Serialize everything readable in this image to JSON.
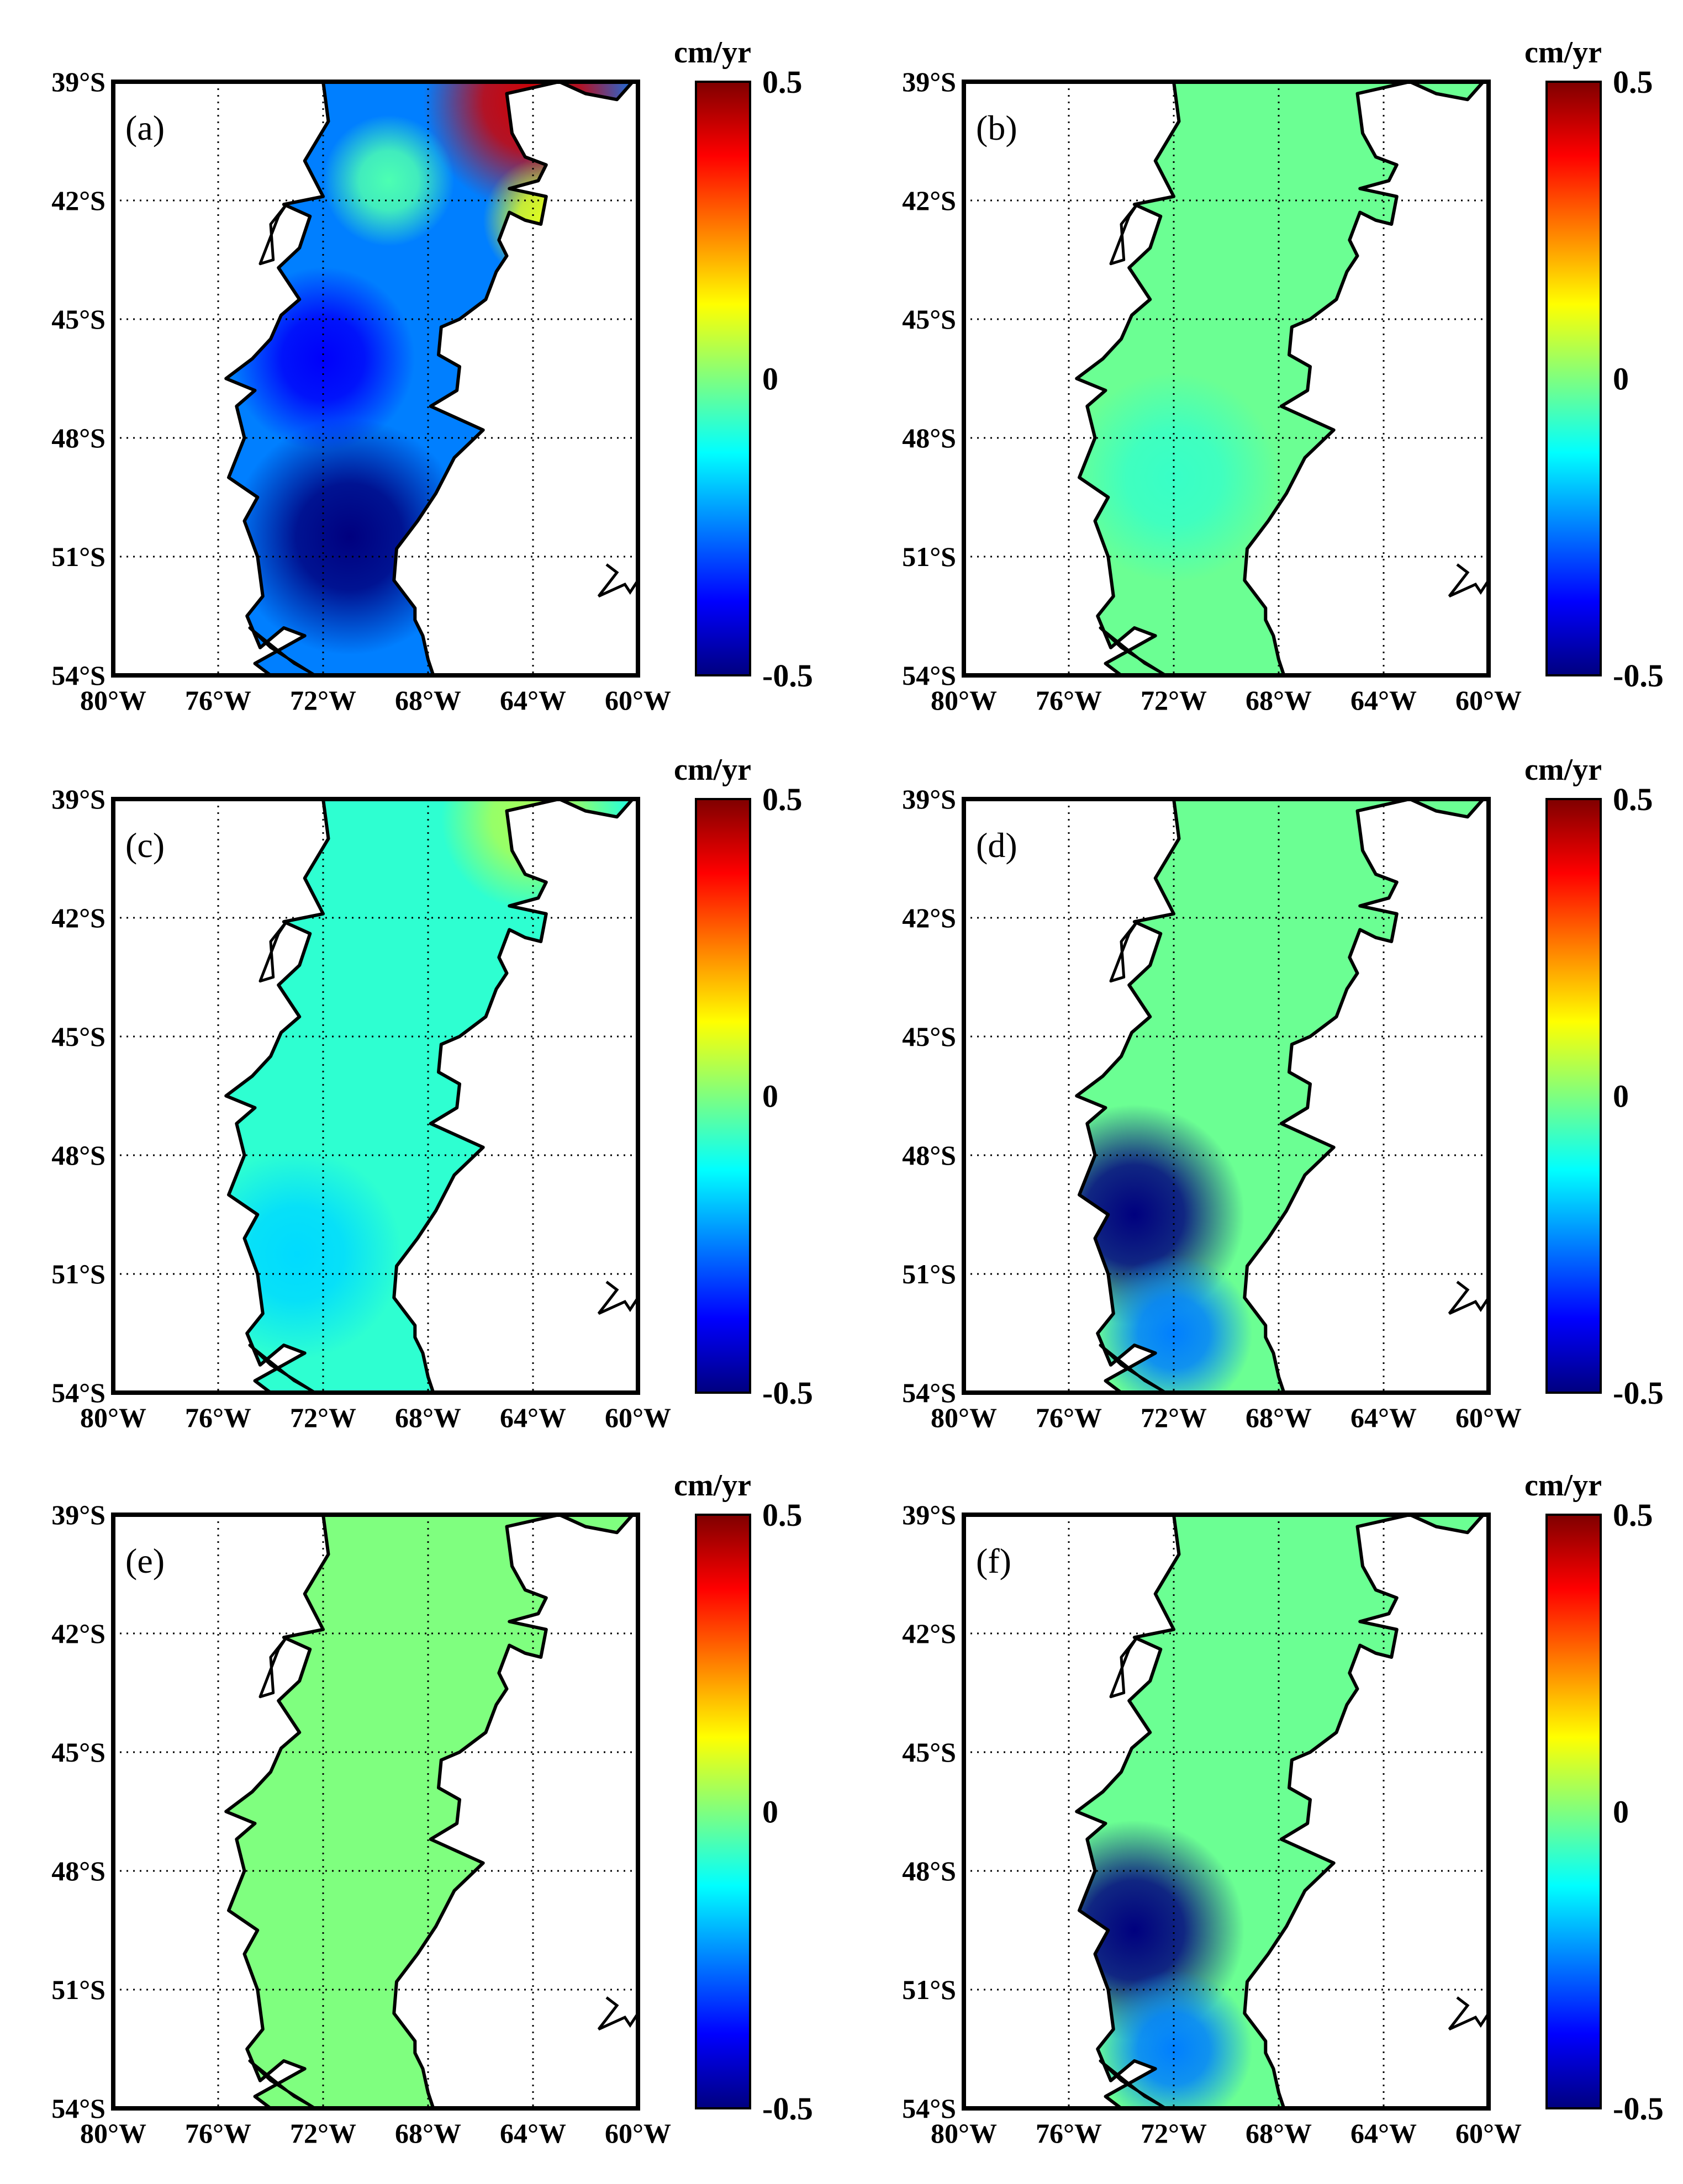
{
  "figure": {
    "unit_label": "cm/yr",
    "colormap": "jet",
    "colorbar_ticks": [
      "0.5",
      "0",
      "-0.5"
    ],
    "colorbar_range": [
      -0.5,
      0.5
    ],
    "lat_ticks": [
      "39°S",
      "42°S",
      "45°S",
      "48°S",
      "51°S",
      "54°S"
    ],
    "lon_ticks": [
      "80°W",
      "76°W",
      "72°W",
      "68°W",
      "64°W",
      "60°W"
    ],
    "lat_range_deg_s": [
      39,
      54
    ],
    "lon_range_deg_w": [
      80,
      60
    ],
    "colors": {
      "jet": [
        "#00007f",
        "#0000ff",
        "#007fff",
        "#00ffff",
        "#7fff7f",
        "#ffff00",
        "#ff7f00",
        "#ff0000",
        "#7f0000"
      ]
    }
  },
  "panels": [
    {
      "label": "(a)",
      "base_value": -0.25,
      "features": [
        {
          "lon": 71,
          "lat": 50.5,
          "value": -0.5,
          "radius_deg": 4.5
        },
        {
          "lon": 72,
          "lat": 46,
          "value": -0.38,
          "radius_deg": 3.5
        },
        {
          "lon": 64,
          "lat": 39.5,
          "value": 0.42,
          "radius_deg": 4.2
        },
        {
          "lon": 63.5,
          "lat": 42.5,
          "value": 0.1,
          "radius_deg": 2.4
        },
        {
          "lon": 69.5,
          "lat": 41.5,
          "value": -0.05,
          "radius_deg": 2.5
        }
      ]
    },
    {
      "label": "(b)",
      "base_value": -0.02,
      "features": [
        {
          "lon": 72,
          "lat": 49,
          "value": -0.07,
          "radius_deg": 4
        }
      ]
    },
    {
      "label": "(c)",
      "base_value": -0.08,
      "features": [
        {
          "lon": 73,
          "lat": 50.5,
          "value": -0.16,
          "radius_deg": 4
        },
        {
          "lon": 64,
          "lat": 39.5,
          "value": 0.04,
          "radius_deg": 3.5
        }
      ]
    },
    {
      "label": "(d)",
      "base_value": -0.02,
      "features": [
        {
          "lon": 73.5,
          "lat": 49.5,
          "value": -0.52,
          "radius_deg": 4.2
        },
        {
          "lon": 72,
          "lat": 52.5,
          "value": -0.25,
          "radius_deg": 3
        }
      ]
    },
    {
      "label": "(e)",
      "base_value": 0.0,
      "features": []
    },
    {
      "label": "(f)",
      "base_value": -0.02,
      "features": [
        {
          "lon": 73.5,
          "lat": 49.5,
          "value": -0.52,
          "radius_deg": 4.2
        },
        {
          "lon": 72,
          "lat": 52.5,
          "value": -0.25,
          "radius_deg": 3
        }
      ]
    }
  ]
}
